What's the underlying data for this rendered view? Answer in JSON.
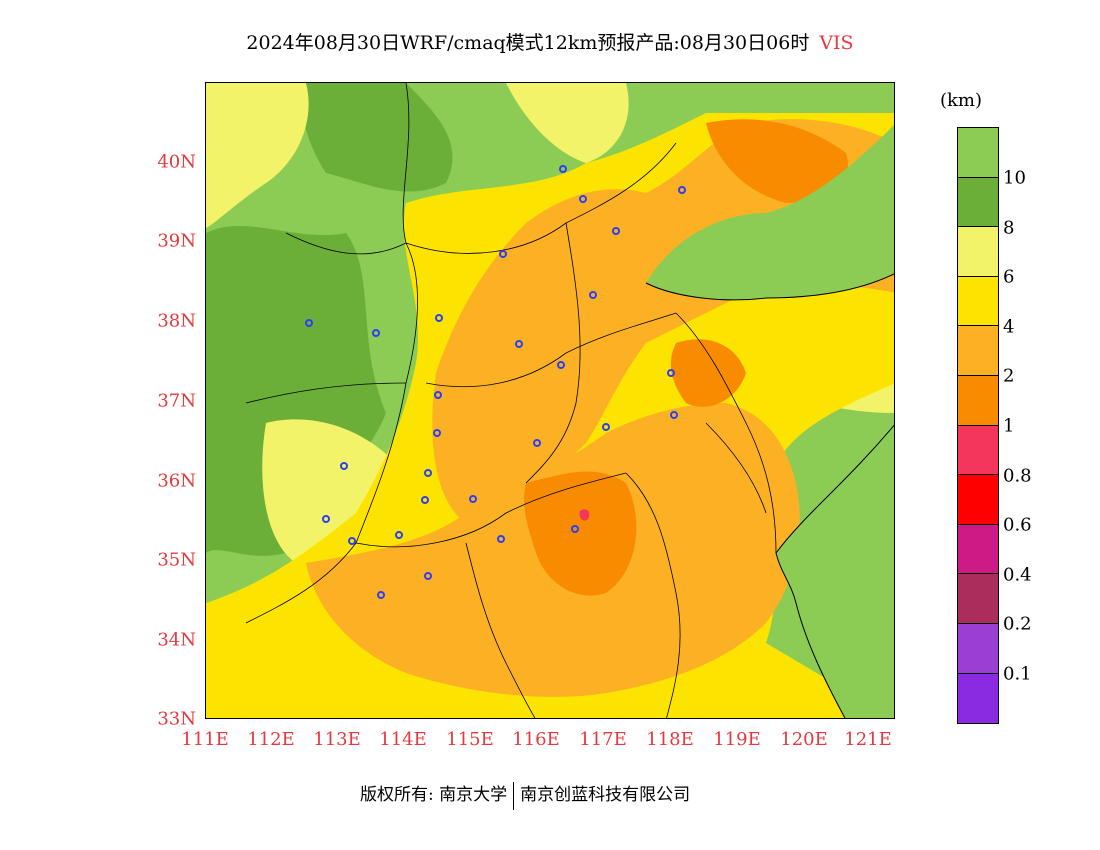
{
  "title": {
    "text": "2024年08月30日WRF/cmaq模式12km预报产品:08月30日06时",
    "variable": "VIS"
  },
  "map": {
    "lat_labels": [
      "40N",
      "39N",
      "38N",
      "37N",
      "36N",
      "35N",
      "34N",
      "33N"
    ],
    "lon_labels": [
      "111E",
      "112E",
      "113E",
      "114E",
      "115E",
      "116E",
      "117E",
      "118E",
      "119E",
      "120E",
      "121E"
    ],
    "colors": {
      "sea": "#8ccc55",
      "vis_over_10": "#8ccc55",
      "vis_8_10": "#6caf38",
      "vis_6_8": "#f3f36a",
      "vis_4_6": "#fde400",
      "vis_2_4": "#fcb124",
      "vis_1_2": "#f98b00",
      "vis_0_8_1": "#f4365a",
      "boundary": "#000000",
      "station_marker": "#2c3ff5"
    }
  },
  "legend": {
    "unit": "(km)",
    "labels": [
      "10",
      "8",
      "6",
      "4",
      "2",
      "1",
      "0.8",
      "0.6",
      "0.4",
      "0.2",
      "0.1"
    ],
    "colors": [
      "#8ccc55",
      "#6caf38",
      "#f3f36a",
      "#fde400",
      "#fcb124",
      "#f98b00",
      "#f4365a",
      "#ff0000",
      "#cd1a85",
      "#aa2d5c",
      "#9a3ed4",
      "#8a2be2"
    ]
  },
  "footer": {
    "copyright": "版权所有: 南京大学",
    "company": "南京创蓝科技有限公司"
  }
}
